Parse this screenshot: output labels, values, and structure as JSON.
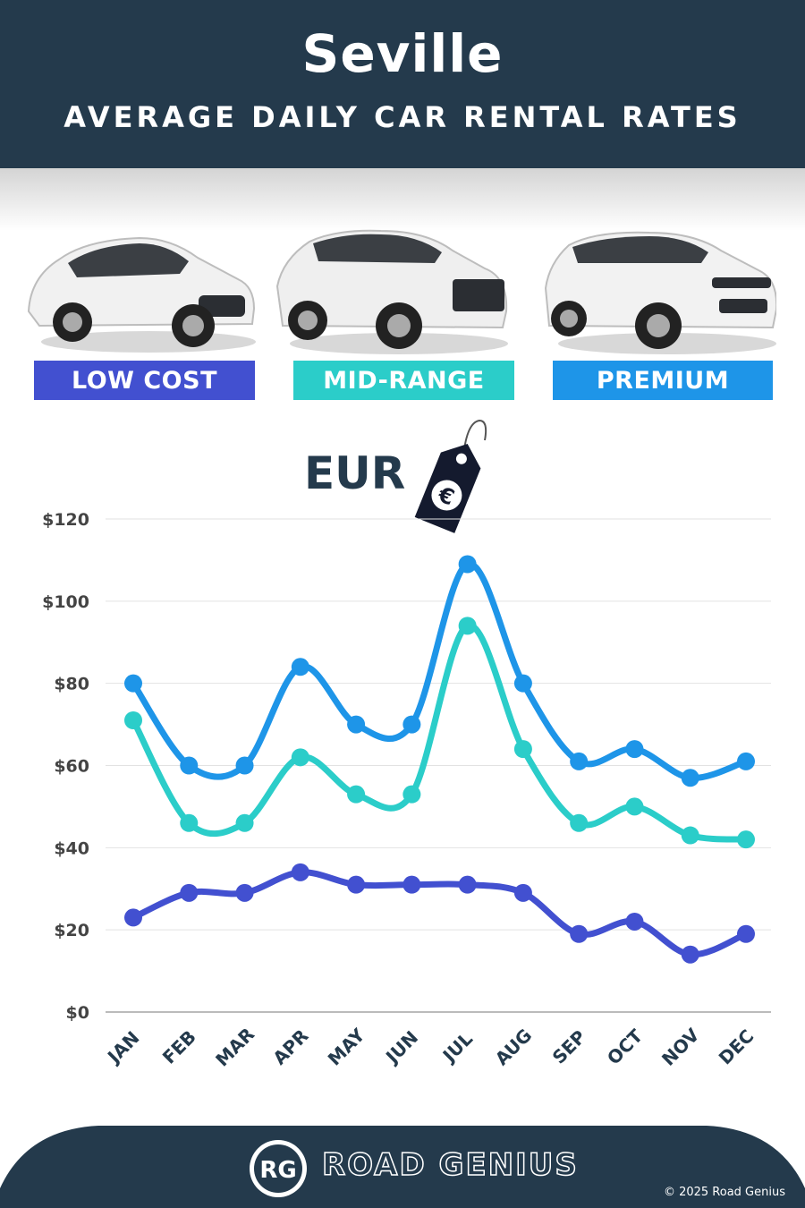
{
  "header": {
    "title": "Seville",
    "subtitle": "AVERAGE DAILY CAR RENTAL RATES"
  },
  "badges": [
    {
      "label": "LOW COST",
      "color": "#4250d0"
    },
    {
      "label": "MID-RANGE",
      "color": "#2bcdc9"
    },
    {
      "label": "PREMIUM",
      "color": "#1e95e8"
    }
  ],
  "currency": {
    "label": "EUR",
    "symbol": "€"
  },
  "chart_data": {
    "type": "line",
    "categories": [
      "JAN",
      "FEB",
      "MAR",
      "APR",
      "MAY",
      "JUN",
      "JUL",
      "AUG",
      "SEP",
      "OCT",
      "NOV",
      "DEC"
    ],
    "series": [
      {
        "name": "LOW COST",
        "color": "#4250d0",
        "values": [
          23,
          29,
          29,
          34,
          31,
          31,
          31,
          29,
          19,
          22,
          14,
          19
        ]
      },
      {
        "name": "MID-RANGE",
        "color": "#2bcdc9",
        "values": [
          71,
          46,
          46,
          62,
          53,
          53,
          94,
          64,
          46,
          50,
          43,
          42
        ]
      },
      {
        "name": "PREMIUM",
        "color": "#1e95e8",
        "values": [
          80,
          60,
          60,
          84,
          70,
          70,
          109,
          80,
          61,
          64,
          57,
          61
        ]
      }
    ],
    "ylim": [
      0,
      120
    ],
    "yticks": [
      0,
      20,
      40,
      60,
      80,
      100,
      120
    ],
    "ytick_labels": [
      "$0",
      "$20",
      "$40",
      "$60",
      "$80",
      "$100",
      "$120"
    ],
    "grid": true
  },
  "footer": {
    "brand": "ROAD GENIUS",
    "logo_text": "RG",
    "copyright": "© 2025 Road Genius",
    "color": "#243a4c"
  }
}
